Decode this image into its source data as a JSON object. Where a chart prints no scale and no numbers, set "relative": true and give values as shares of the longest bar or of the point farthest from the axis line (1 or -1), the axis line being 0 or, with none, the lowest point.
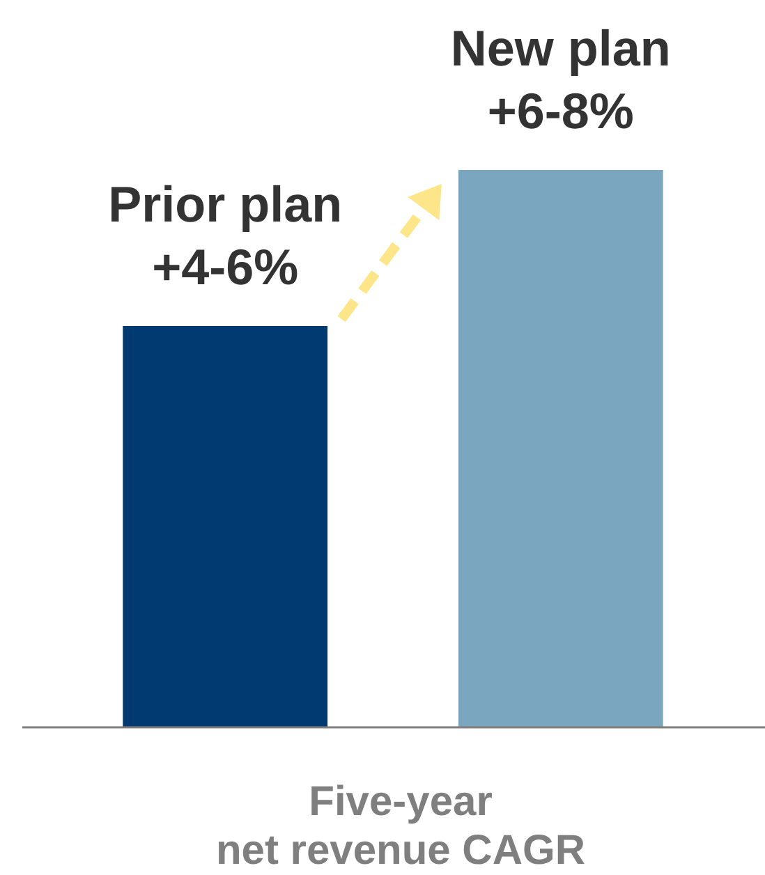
{
  "chart_data": {
    "type": "bar",
    "relative": true,
    "categories": [
      "Prior plan +4-6%",
      "New plan +6-8%"
    ],
    "values": [
      0.72,
      1
    ],
    "colors": [
      "#003a70",
      "#7aa7bf"
    ],
    "xlabel": "Five-year net revenue CAGR"
  }
}
